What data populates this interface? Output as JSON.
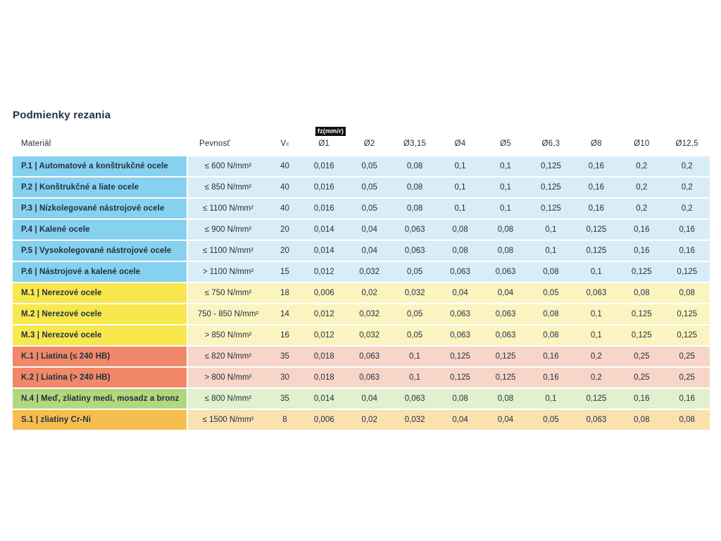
{
  "title": "Podmienky rezania",
  "table": {
    "fz_badge": "fz(mm/r)",
    "headers": {
      "material": "Materiál",
      "pevnost": "Pevnosť",
      "vc_main": "V",
      "vc_sub": "c",
      "diameters": [
        "Ø1",
        "Ø2",
        "Ø3,15",
        "Ø4",
        "Ø5",
        "Ø6,3",
        "Ø8",
        "Ø10",
        "Ø12,5"
      ]
    },
    "group_colors": {
      "P": {
        "label": "#86d1ef",
        "cell": "#d8edf8"
      },
      "M": {
        "label": "#f8e74d",
        "cell": "#fbf4c1"
      },
      "K": {
        "label": "#f08869",
        "cell": "#f8d5c9"
      },
      "N": {
        "label": "#b2d77d",
        "cell": "#e1f0cd"
      },
      "S": {
        "label": "#f6bd4f",
        "cell": "#fae1ae"
      }
    },
    "rows": [
      {
        "group": "P",
        "material": "P.1 | Automatové a konštrukčné ocele",
        "pevnost": "≤ 600 N/mm²",
        "vc": "40",
        "fz": [
          "0,016",
          "0,05",
          "0,08",
          "0,1",
          "0,1",
          "0,125",
          "0,16",
          "0,2",
          "0,2"
        ]
      },
      {
        "group": "P",
        "material": "P.2 | Konštrukčné a liate ocele",
        "pevnost": "≤ 850 N/mm²",
        "vc": "40",
        "fz": [
          "0,016",
          "0,05",
          "0,08",
          "0,1",
          "0,1",
          "0,125",
          "0,16",
          "0,2",
          "0,2"
        ]
      },
      {
        "group": "P",
        "material": "P.3 | Nízkolegované nástrojové ocele",
        "pevnost": "≤ 1100 N/mm²",
        "vc": "40",
        "fz": [
          "0,016",
          "0,05",
          "0,08",
          "0,1",
          "0,1",
          "0,125",
          "0,16",
          "0,2",
          "0,2"
        ]
      },
      {
        "group": "P",
        "material": "P.4 | Kalené ocele",
        "pevnost": "≤ 900 N/mm²",
        "vc": "20",
        "fz": [
          "0,014",
          "0,04",
          "0,063",
          "0,08",
          "0,08",
          "0,1",
          "0,125",
          "0,16",
          "0,16"
        ]
      },
      {
        "group": "P",
        "material": "P.5 | Vysokolegované nástrojové ocele",
        "pevnost": "≤ 1100 N/mm²",
        "vc": "20",
        "fz": [
          "0,014",
          "0,04",
          "0,063",
          "0,08",
          "0,08",
          "0,1",
          "0,125",
          "0,16",
          "0,16"
        ]
      },
      {
        "group": "P",
        "material": "P.6 | Nástrojové a kalené ocele",
        "pevnost": "> 1100 N/mm²",
        "vc": "15",
        "fz": [
          "0,012",
          "0,032",
          "0,05",
          "0,063",
          "0,063",
          "0,08",
          "0,1",
          "0,125",
          "0,125"
        ]
      },
      {
        "group": "M",
        "material": "M.1 | Nerezové ocele",
        "pevnost": "≤ 750 N/mm²",
        "vc": "18",
        "fz": [
          "0,006",
          "0,02",
          "0,032",
          "0,04",
          "0,04",
          "0,05",
          "0,063",
          "0,08",
          "0,08"
        ]
      },
      {
        "group": "M",
        "material": "M.2 | Nerezové ocele",
        "pevnost": "750 - 850 N/mm²",
        "vc": "14",
        "fz": [
          "0,012",
          "0,032",
          "0,05",
          "0,063",
          "0,063",
          "0,08",
          "0,1",
          "0,125",
          "0,125"
        ]
      },
      {
        "group": "M",
        "material": "M.3 | Nerezové ocele",
        "pevnost": "> 850 N/mm²",
        "vc": "16",
        "fz": [
          "0,012",
          "0,032",
          "0,05",
          "0,063",
          "0,063",
          "0,08",
          "0,1",
          "0,125",
          "0,125"
        ]
      },
      {
        "group": "K",
        "material": "K.1 | Liatina (≤ 240 HB)",
        "pevnost": "≤ 820 N/mm²",
        "vc": "35",
        "fz": [
          "0,018",
          "0,063",
          "0,1",
          "0,125",
          "0,125",
          "0,16",
          "0,2",
          "0,25",
          "0,25"
        ]
      },
      {
        "group": "K",
        "material": "K.2 | Liatina (> 240 HB)",
        "pevnost": "> 800 N/mm²",
        "vc": "30",
        "fz": [
          "0,018",
          "0,063",
          "0,1",
          "0,125",
          "0,125",
          "0,16",
          "0,2",
          "0,25",
          "0,25"
        ]
      },
      {
        "group": "N",
        "material": "N.4 | Meď, zliatiny medi, mosadz a bronz",
        "pevnost": "≤ 800 N/mm²",
        "vc": "35",
        "fz": [
          "0,014",
          "0,04",
          "0,063",
          "0,08",
          "0,08",
          "0,1",
          "0,125",
          "0,16",
          "0,16"
        ]
      },
      {
        "group": "S",
        "material": "S.1 | zliatiny Cr-Ni",
        "pevnost": "≤ 1500 N/mm²",
        "vc": "8",
        "fz": [
          "0,006",
          "0,02",
          "0,032",
          "0,04",
          "0,04",
          "0,05",
          "0,063",
          "0,08",
          "0,08"
        ]
      }
    ]
  }
}
